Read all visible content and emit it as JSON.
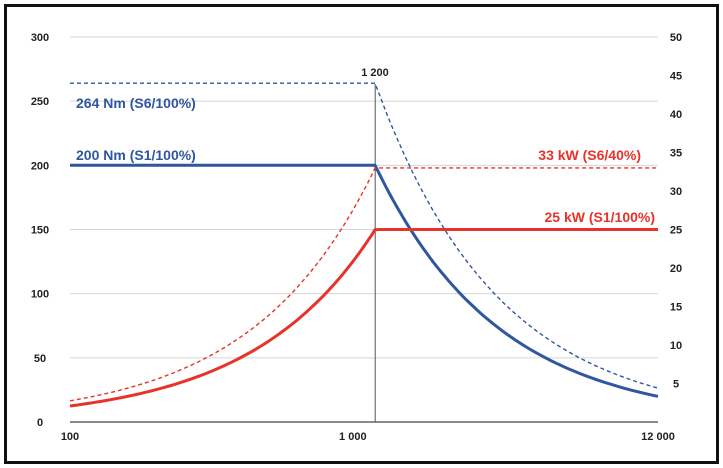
{
  "chart_data": {
    "type": "line",
    "x_scale": "log",
    "xlim": [
      100,
      12000
    ],
    "ylim_left": [
      0,
      300
    ],
    "ylim_right": [
      0,
      50
    ],
    "grid": true,
    "x_ticks": [
      "100",
      "1 000",
      "12 000"
    ],
    "y_left_ticks": [
      "0",
      "50",
      "100",
      "150",
      "200",
      "250",
      "300"
    ],
    "y_right_ticks": [
      "5",
      "10",
      "15",
      "20",
      "25",
      "30",
      "35",
      "40",
      "45",
      "50"
    ],
    "vertical_marker": {
      "x": 1200,
      "label": "1 200"
    },
    "colors": {
      "torque": "#2f56a0",
      "power": "#e8332a"
    },
    "series": [
      {
        "name": "264 Nm (S6/100%)",
        "axis": "left",
        "style": "dashed",
        "color": "#2f56a0",
        "base": 264,
        "kind": "torque",
        "corner": 1200
      },
      {
        "name": "200 Nm (S1/100%)",
        "axis": "left",
        "style": "solid",
        "color": "#2f56a0",
        "base": 200,
        "kind": "torque",
        "corner": 1200
      },
      {
        "name": "33 kW (S6/40%)",
        "axis": "right",
        "style": "dashed",
        "color": "#e8332a",
        "base": 33,
        "kind": "power",
        "corner": 1200
      },
      {
        "name": "25 kW (S1/100%)",
        "axis": "right",
        "style": "solid",
        "color": "#e8332a",
        "base": 25,
        "kind": "power",
        "corner": 1200
      }
    ]
  }
}
